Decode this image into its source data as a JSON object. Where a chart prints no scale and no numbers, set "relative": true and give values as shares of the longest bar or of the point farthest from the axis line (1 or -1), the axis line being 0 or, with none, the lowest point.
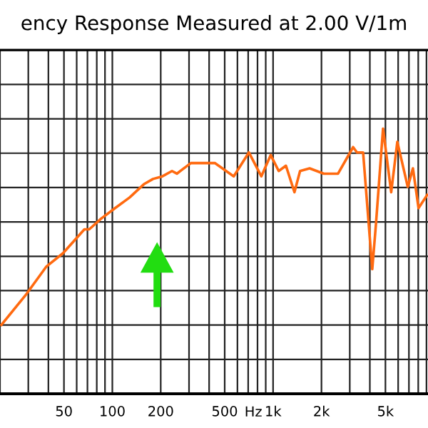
{
  "chart_data": {
    "type": "line",
    "title": "ency Response Measured at 2.00 V/1m",
    "xlabel": "Hz",
    "relative": true,
    "log": "x",
    "grid": true,
    "legend": false,
    "marker": "none",
    "line_style": "solid",
    "xlim": [
      20,
      9200
    ],
    "xticks": [
      50,
      100,
      200,
      500,
      {
        "value": 1000,
        "label": "1k"
      },
      {
        "value": 2000,
        "label": "2k"
      },
      {
        "value": 5000,
        "label": "5k"
      }
    ],
    "series": [
      {
        "color": "#ff6a10",
        "x": [
          20.4,
          28.7,
          38.9,
          49.3,
          67,
          71.8,
          85,
          104,
          128,
          157,
          179,
          205,
          235,
          252,
          308,
          434,
          569,
          707,
          845,
          966,
          1084,
          1202,
          1358,
          1472,
          1688,
          2069,
          2536,
          3148,
          3327,
          3631,
          4140,
          4365,
          4831,
          5430,
          5929,
          6887,
          7413,
          8035,
          9100
        ],
        "values": [
          0.26,
          0.37,
          0.48,
          0.53,
          0.62,
          0.62,
          0.66,
          0.7,
          0.74,
          0.79,
          0.81,
          0.82,
          0.84,
          0.83,
          0.87,
          0.87,
          0.82,
          0.91,
          0.82,
          0.9,
          0.84,
          0.86,
          0.76,
          0.84,
          0.85,
          0.83,
          0.83,
          0.93,
          0.91,
          0.91,
          0.47,
          0.64,
          1.0,
          0.76,
          0.95,
          0.78,
          0.85,
          0.7,
          0.75
        ]
      }
    ]
  }
}
